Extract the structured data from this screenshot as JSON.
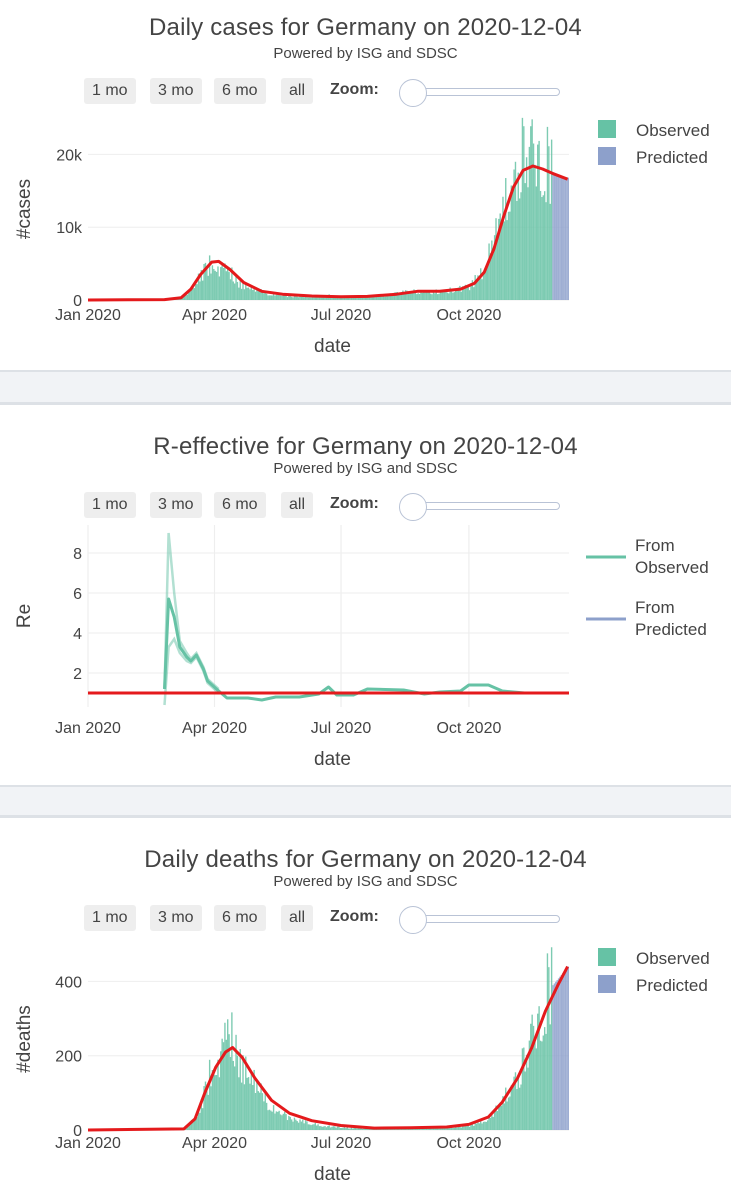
{
  "controls": {
    "buttons": [
      "1 mo",
      "3 mo",
      "6 mo",
      "all"
    ],
    "zoom_label": "Zoom:"
  },
  "legend": {
    "observed": "Observed",
    "predicted": "Predicted",
    "from_observed": [
      "From",
      "Observed"
    ],
    "from_predicted": [
      "From",
      "Predicted"
    ]
  },
  "colors": {
    "observed": "#66c2a5",
    "predicted": "#8da0cb",
    "model_line": "#e41a1c"
  },
  "chart_data": [
    {
      "id": "cases",
      "type": "bar",
      "title": "Daily cases for Germany on 2020-12-04",
      "subtitle": "Powered by ISG and SDSC",
      "xlabel": "date",
      "ylabel": "#cases",
      "x_range": [
        "2020-01-01",
        "2020-12-12"
      ],
      "xticks": [
        {
          "date": "2020-01-01",
          "label": "Jan 2020"
        },
        {
          "date": "2020-04-01",
          "label": "Apr 2020"
        },
        {
          "date": "2020-07-01",
          "label": "Jul 2020"
        },
        {
          "date": "2020-10-01",
          "label": "Oct 2020"
        }
      ],
      "ylim": [
        0,
        25000
      ],
      "yticks": [
        {
          "v": 0,
          "label": "0"
        },
        {
          "v": 10000,
          "label": "10k"
        },
        {
          "v": 20000,
          "label": "20k"
        }
      ],
      "legend": "right",
      "series": [
        {
          "name": "Observed",
          "kind": "bars",
          "date_range": [
            "2020-01-01",
            "2020-11-29"
          ],
          "points": [
            [
              "2020-01-01",
              0
            ],
            [
              "2020-02-25",
              30
            ],
            [
              "2020-03-05",
              200
            ],
            [
              "2020-03-12",
              1000
            ],
            [
              "2020-03-18",
              3000
            ],
            [
              "2020-03-22",
              4500
            ],
            [
              "2020-03-27",
              5800
            ],
            [
              "2020-04-02",
              6000
            ],
            [
              "2020-04-10",
              4800
            ],
            [
              "2020-04-18",
              3000
            ],
            [
              "2020-04-28",
              1800
            ],
            [
              "2020-05-10",
              1000
            ],
            [
              "2020-05-25",
              600
            ],
            [
              "2020-06-10",
              500
            ],
            [
              "2020-06-20",
              800
            ],
            [
              "2020-07-01",
              500
            ],
            [
              "2020-07-20",
              600
            ],
            [
              "2020-08-05",
              900
            ],
            [
              "2020-08-20",
              1400
            ],
            [
              "2020-09-05",
              1300
            ],
            [
              "2020-09-20",
              1800
            ],
            [
              "2020-10-01",
              2400
            ],
            [
              "2020-10-10",
              4500
            ],
            [
              "2020-10-16",
              8000
            ],
            [
              "2020-10-22",
              12000
            ],
            [
              "2020-10-28",
              16000
            ],
            [
              "2020-11-03",
              19000
            ],
            [
              "2020-11-07",
              23300
            ],
            [
              "2020-11-13",
              23000
            ],
            [
              "2020-11-20",
              23600
            ],
            [
              "2020-11-29",
              21500
            ]
          ]
        },
        {
          "name": "Predicted",
          "kind": "bars",
          "date_range": [
            "2020-11-30",
            "2020-12-11"
          ],
          "points": [
            [
              "2020-11-30",
              17300
            ],
            [
              "2020-12-11",
              16800
            ]
          ]
        },
        {
          "name": "model",
          "kind": "line",
          "points": [
            [
              "2020-01-01",
              0
            ],
            [
              "2020-02-25",
              50
            ],
            [
              "2020-03-08",
              300
            ],
            [
              "2020-03-15",
              1500
            ],
            [
              "2020-03-22",
              3500
            ],
            [
              "2020-03-30",
              5200
            ],
            [
              "2020-04-04",
              5300
            ],
            [
              "2020-04-12",
              4200
            ],
            [
              "2020-04-22",
              2400
            ],
            [
              "2020-05-05",
              1200
            ],
            [
              "2020-05-20",
              800
            ],
            [
              "2020-06-10",
              550
            ],
            [
              "2020-07-01",
              450
            ],
            [
              "2020-07-20",
              500
            ],
            [
              "2020-08-10",
              800
            ],
            [
              "2020-08-25",
              1200
            ],
            [
              "2020-09-10",
              1200
            ],
            [
              "2020-09-25",
              1500
            ],
            [
              "2020-10-05",
              2300
            ],
            [
              "2020-10-12",
              3800
            ],
            [
              "2020-10-19",
              7000
            ],
            [
              "2020-10-26",
              11500
            ],
            [
              "2020-11-02",
              15500
            ],
            [
              "2020-11-09",
              17800
            ],
            [
              "2020-11-16",
              18400
            ],
            [
              "2020-11-23",
              18000
            ],
            [
              "2020-11-30",
              17400
            ],
            [
              "2020-12-11",
              16600
            ]
          ]
        }
      ]
    },
    {
      "id": "re",
      "type": "line",
      "title": "R-effective for Germany on 2020-12-04",
      "subtitle": "Powered by ISG and SDSC",
      "xlabel": "date",
      "ylabel": "Re",
      "x_range": [
        "2020-01-01",
        "2020-12-12"
      ],
      "xticks": [
        {
          "date": "2020-01-01",
          "label": "Jan 2020"
        },
        {
          "date": "2020-04-01",
          "label": "Apr 2020"
        },
        {
          "date": "2020-07-01",
          "label": "Jul 2020"
        },
        {
          "date": "2020-10-01",
          "label": "Oct 2020"
        }
      ],
      "ylim": [
        0.3,
        9.4
      ],
      "yticks": [
        {
          "v": 2,
          "label": "2"
        },
        {
          "v": 4,
          "label": "4"
        },
        {
          "v": 6,
          "label": "6"
        },
        {
          "v": 8,
          "label": "8"
        }
      ],
      "grid": true,
      "legend": "right",
      "reference_line": 1,
      "series": [
        {
          "name": "From Observed",
          "kind": "line",
          "points": [
            [
              "2020-02-25",
              1.2
            ],
            [
              "2020-02-28",
              5.7
            ],
            [
              "2020-03-03",
              4.8
            ],
            [
              "2020-03-07",
              3.3
            ],
            [
              "2020-03-12",
              2.8
            ],
            [
              "2020-03-15",
              2.6
            ],
            [
              "2020-03-19",
              2.9
            ],
            [
              "2020-03-24",
              2.2
            ],
            [
              "2020-03-27",
              1.6
            ],
            [
              "2020-04-04",
              1.1
            ],
            [
              "2020-04-10",
              0.75
            ],
            [
              "2020-04-25",
              0.75
            ],
            [
              "2020-05-05",
              0.65
            ],
            [
              "2020-05-15",
              0.8
            ],
            [
              "2020-06-01",
              0.8
            ],
            [
              "2020-06-15",
              0.95
            ],
            [
              "2020-06-22",
              1.3
            ],
            [
              "2020-06-28",
              0.9
            ],
            [
              "2020-07-10",
              0.9
            ],
            [
              "2020-07-20",
              1.2
            ],
            [
              "2020-08-15",
              1.15
            ],
            [
              "2020-08-30",
              0.95
            ],
            [
              "2020-09-10",
              1.05
            ],
            [
              "2020-09-25",
              1.1
            ],
            [
              "2020-10-01",
              1.4
            ],
            [
              "2020-10-15",
              1.4
            ],
            [
              "2020-10-25",
              1.1
            ],
            [
              "2020-11-10",
              1.0
            ],
            [
              "2020-12-03",
              1.0
            ]
          ]
        },
        {
          "name": "From Observed upper",
          "kind": "band",
          "points": [
            [
              "2020-02-25",
              1.2
            ],
            [
              "2020-02-28",
              9.0
            ],
            [
              "2020-03-03",
              6.0
            ],
            [
              "2020-03-07",
              3.6
            ],
            [
              "2020-03-12",
              3.0
            ],
            [
              "2020-03-15",
              2.7
            ],
            [
              "2020-03-19",
              3.0
            ],
            [
              "2020-03-24",
              2.3
            ],
            [
              "2020-03-27",
              1.7
            ],
            [
              "2020-04-04",
              1.2
            ]
          ]
        },
        {
          "name": "From Observed lower",
          "kind": "band",
          "points": [
            [
              "2020-02-25",
              0.4
            ],
            [
              "2020-02-28",
              3.3
            ],
            [
              "2020-03-03",
              3.7
            ],
            [
              "2020-03-07",
              3.0
            ],
            [
              "2020-03-12",
              2.6
            ],
            [
              "2020-03-15",
              2.5
            ],
            [
              "2020-03-19",
              2.8
            ],
            [
              "2020-03-24",
              2.1
            ],
            [
              "2020-03-27",
              1.5
            ],
            [
              "2020-04-04",
              1.0
            ]
          ]
        }
      ]
    },
    {
      "id": "deaths",
      "type": "bar",
      "title": "Daily deaths for Germany on 2020-12-04",
      "subtitle": "Powered by ISG and SDSC",
      "xlabel": "date",
      "ylabel": "#deaths",
      "x_range": [
        "2020-01-01",
        "2020-12-12"
      ],
      "xticks": [
        {
          "date": "2020-01-01",
          "label": "Jan 2020"
        },
        {
          "date": "2020-04-01",
          "label": "Apr 2020"
        },
        {
          "date": "2020-07-01",
          "label": "Jul 2020"
        },
        {
          "date": "2020-10-01",
          "label": "Oct 2020"
        }
      ],
      "ylim": [
        0,
        490
      ],
      "yticks": [
        {
          "v": 0,
          "label": "0"
        },
        {
          "v": 200,
          "label": "200"
        },
        {
          "v": 400,
          "label": "400"
        }
      ],
      "legend": "right",
      "series": [
        {
          "name": "Observed",
          "kind": "bars",
          "date_range": [
            "2020-01-01",
            "2020-11-29"
          ],
          "points": [
            [
              "2020-01-01",
              0
            ],
            [
              "2020-03-10",
              2
            ],
            [
              "2020-03-20",
              60
            ],
            [
              "2020-03-28",
              180
            ],
            [
              "2020-04-05",
              260
            ],
            [
              "2020-04-10",
              315
            ],
            [
              "2020-04-16",
              270
            ],
            [
              "2020-04-25",
              180
            ],
            [
              "2020-05-05",
              110
            ],
            [
              "2020-05-15",
              60
            ],
            [
              "2020-05-30",
              30
            ],
            [
              "2020-06-15",
              15
            ],
            [
              "2020-07-01",
              8
            ],
            [
              "2020-07-20",
              5
            ],
            [
              "2020-08-10",
              5
            ],
            [
              "2020-09-01",
              8
            ],
            [
              "2020-09-20",
              10
            ],
            [
              "2020-10-01",
              15
            ],
            [
              "2020-10-15",
              35
            ],
            [
              "2020-10-25",
              90
            ],
            [
              "2020-11-05",
              170
            ],
            [
              "2020-11-12",
              250
            ],
            [
              "2020-11-18",
              330
            ],
            [
              "2020-11-24",
              420
            ],
            [
              "2020-11-29",
              480
            ]
          ]
        },
        {
          "name": "Predicted",
          "kind": "bars",
          "date_range": [
            "2020-11-30",
            "2020-12-11"
          ],
          "points": [
            [
              "2020-11-30",
              390
            ],
            [
              "2020-12-11",
              440
            ]
          ]
        },
        {
          "name": "model",
          "kind": "line",
          "points": [
            [
              "2020-01-01",
              0
            ],
            [
              "2020-03-10",
              3
            ],
            [
              "2020-03-18",
              30
            ],
            [
              "2020-03-25",
              100
            ],
            [
              "2020-04-02",
              170
            ],
            [
              "2020-04-09",
              210
            ],
            [
              "2020-04-14",
              222
            ],
            [
              "2020-04-21",
              195
            ],
            [
              "2020-04-30",
              140
            ],
            [
              "2020-05-12",
              80
            ],
            [
              "2020-05-25",
              45
            ],
            [
              "2020-06-10",
              25
            ],
            [
              "2020-07-01",
              12
            ],
            [
              "2020-07-25",
              5
            ],
            [
              "2020-08-20",
              6
            ],
            [
              "2020-09-15",
              8
            ],
            [
              "2020-10-01",
              15
            ],
            [
              "2020-10-15",
              35
            ],
            [
              "2020-10-25",
              75
            ],
            [
              "2020-11-05",
              140
            ],
            [
              "2020-11-15",
              220
            ],
            [
              "2020-11-25",
              320
            ],
            [
              "2020-12-04",
              390
            ],
            [
              "2020-12-11",
              440
            ]
          ]
        }
      ]
    }
  ]
}
